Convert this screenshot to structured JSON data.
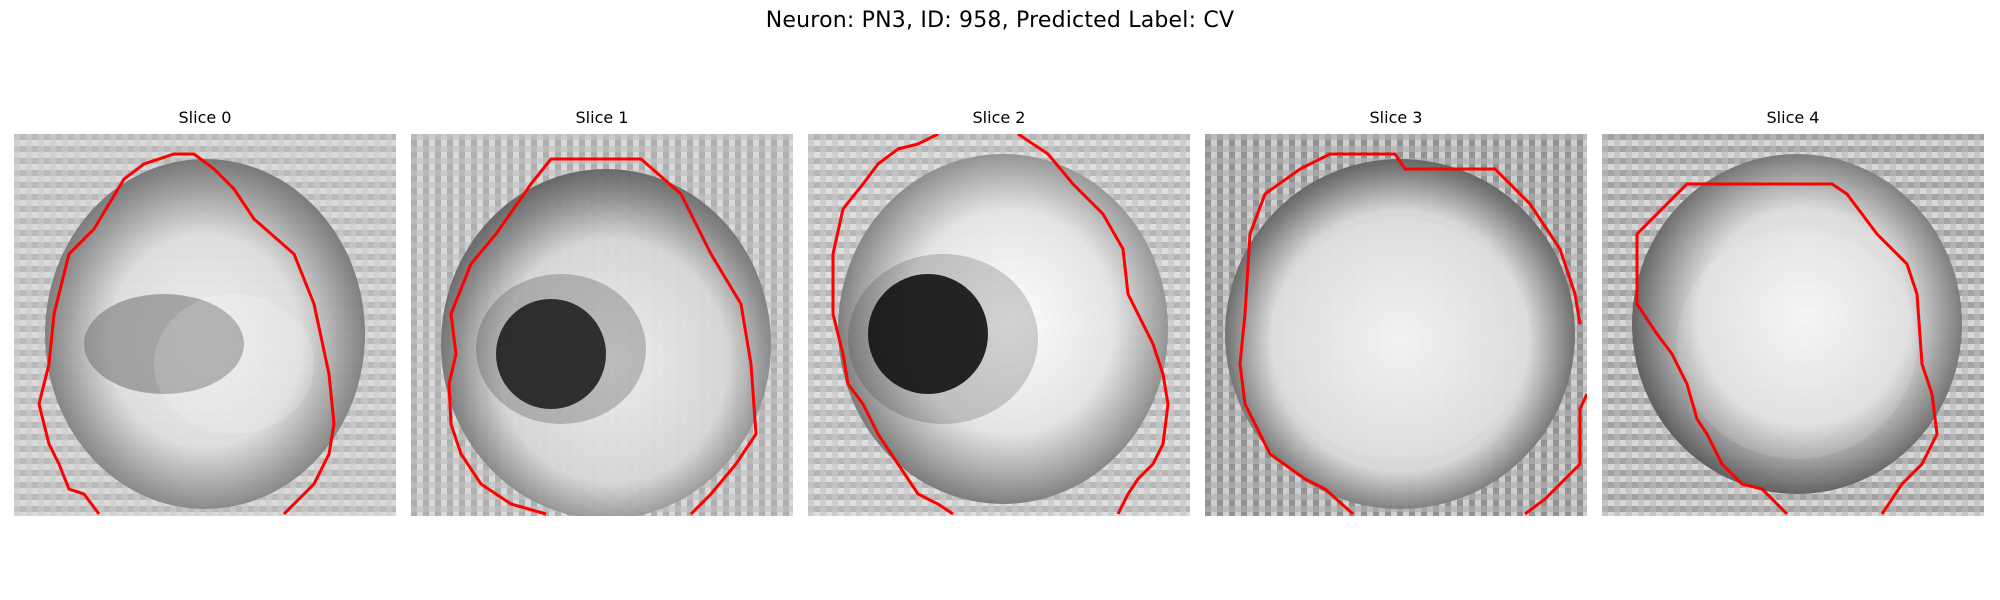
{
  "figure": {
    "title": "Neuron: PN3, ID: 958, Predicted Label: CV",
    "contour_color": "#ff0000",
    "panels": [
      {
        "title": "Slice 0",
        "image_description": "grayscale microscopy crop with an oval cell body; red boundary contour"
      },
      {
        "title": "Slice 1",
        "image_description": "grayscale microscopy crop with dark nucleus; red boundary contour"
      },
      {
        "title": "Slice 2",
        "image_description": "grayscale microscopy crop with dark nucleus and bright ring; red boundary contour"
      },
      {
        "title": "Slice 3",
        "image_description": "grayscale microscopy crop with darker rim; red boundary contour"
      },
      {
        "title": "Slice 4",
        "image_description": "grayscale microscopy crop with bright center; red boundary contour"
      }
    ]
  }
}
